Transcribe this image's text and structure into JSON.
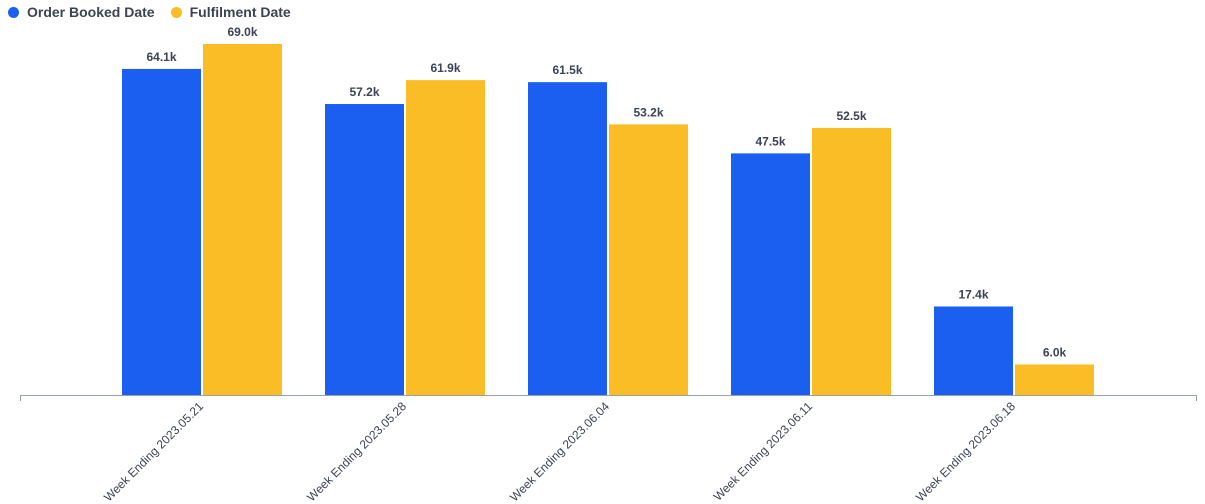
{
  "chart_data": {
    "type": "bar",
    "categories": [
      "Week Ending 2023.05.21",
      "Week Ending 2023.05.28",
      "Week Ending 2023.06.04",
      "Week Ending 2023.06.11",
      "Week Ending 2023.06.18"
    ],
    "series": [
      {
        "name": "Order Booked Date",
        "color": "#1a5ff0",
        "values": [
          64.1,
          57.2,
          61.5,
          47.5,
          17.4
        ],
        "labels": [
          "64.1k",
          "57.2k",
          "61.5k",
          "47.5k",
          "17.4k"
        ]
      },
      {
        "name": "Fulfilment Date",
        "color": "#fbbd25",
        "values": [
          69.0,
          61.9,
          53.2,
          52.5,
          6.0
        ],
        "labels": [
          "69.0k",
          "61.9k",
          "53.2k",
          "52.5k",
          "6.0k"
        ]
      }
    ],
    "ylim": [
      0,
      74
    ],
    "grid": false,
    "legend_position": "top-left"
  }
}
